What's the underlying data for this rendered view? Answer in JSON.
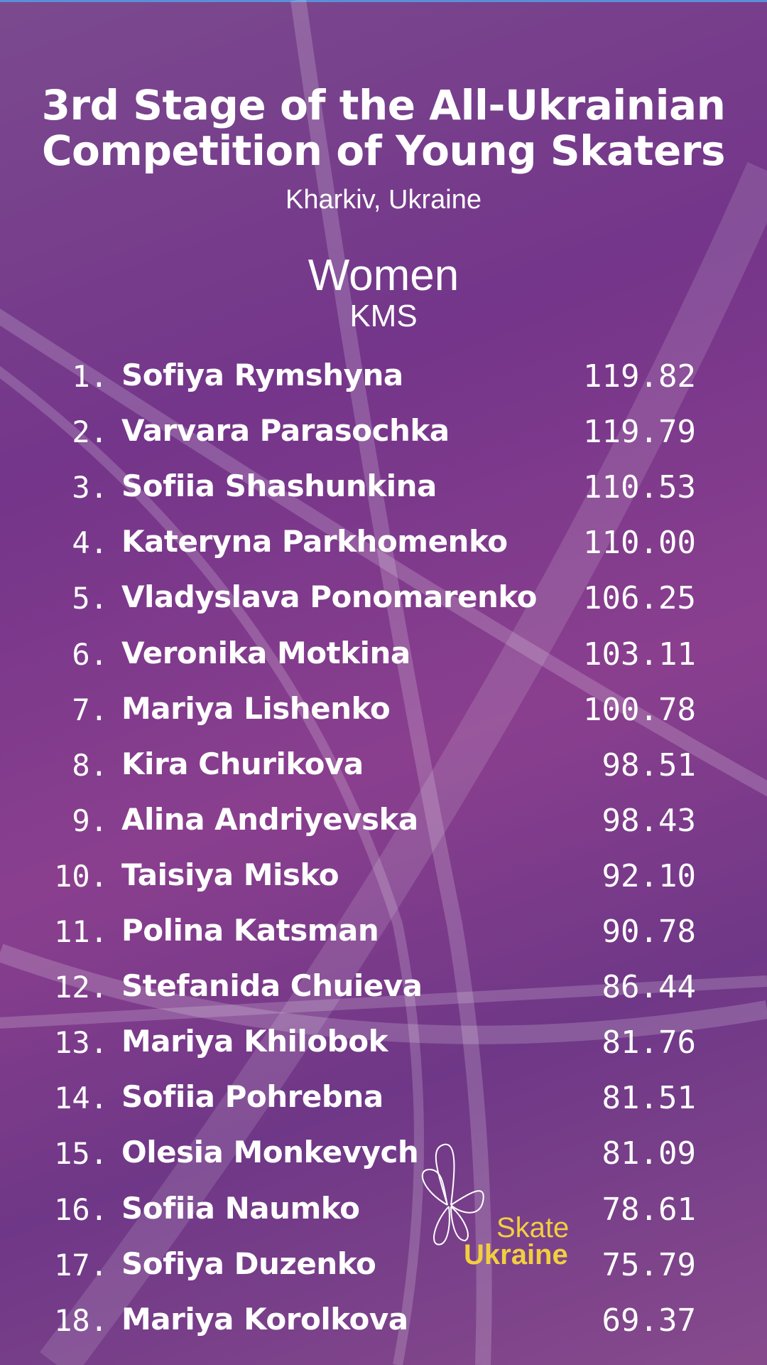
{
  "header": {
    "title_line1": "3rd Stage of the All-Ukrainian",
    "title_line2": "Competition of Young Skaters",
    "location": "Kharkiv, Ukraine",
    "category": "Women",
    "level": "KMS"
  },
  "results": [
    {
      "rank": "1.",
      "name": "Sofiya Rymshyna",
      "score": "119.82"
    },
    {
      "rank": "2.",
      "name": "Varvara Parasochka",
      "score": "119.79"
    },
    {
      "rank": "3.",
      "name": "Sofiia Shashunkina",
      "score": "110.53"
    },
    {
      "rank": "4.",
      "name": "Kateryna Parkhomenko",
      "score": "110.00"
    },
    {
      "rank": "5.",
      "name": "Vladyslava Ponomarenko",
      "score": "106.25"
    },
    {
      "rank": "6.",
      "name": "Veronika Motkina",
      "score": "103.11"
    },
    {
      "rank": "7.",
      "name": "Mariya Lishenko",
      "score": "100.78"
    },
    {
      "rank": "8.",
      "name": "Kira Churikova",
      "score": "98.51"
    },
    {
      "rank": "9.",
      "name": "Alina Andriyevska",
      "score": "98.43"
    },
    {
      "rank": "10.",
      "name": "Taisiya Misko",
      "score": "92.10"
    },
    {
      "rank": "11.",
      "name": "Polina Katsman",
      "score": "90.78"
    },
    {
      "rank": "12.",
      "name": "Stefanida Chuieva",
      "score": "86.44"
    },
    {
      "rank": "13.",
      "name": "Mariya Khilobok",
      "score": "81.76"
    },
    {
      "rank": "14.",
      "name": "Sofiia Pohrebna",
      "score": "81.51"
    },
    {
      "rank": "15.",
      "name": "Olesia Monkevych",
      "score": "81.09"
    },
    {
      "rank": "16.",
      "name": "Sofiia Naumko",
      "score": "78.61"
    },
    {
      "rank": "17.",
      "name": "Sofiya Duzenko",
      "score": "75.79"
    },
    {
      "rank": "18.",
      "name": "Mariya Korolkova",
      "score": "69.37"
    }
  ],
  "logo": {
    "line1": "Skate",
    "line2": "Ukraine"
  },
  "colors": {
    "background": "#7a3a8c",
    "logo_yellow": "#f2cf3f",
    "text": "#ffffff"
  }
}
